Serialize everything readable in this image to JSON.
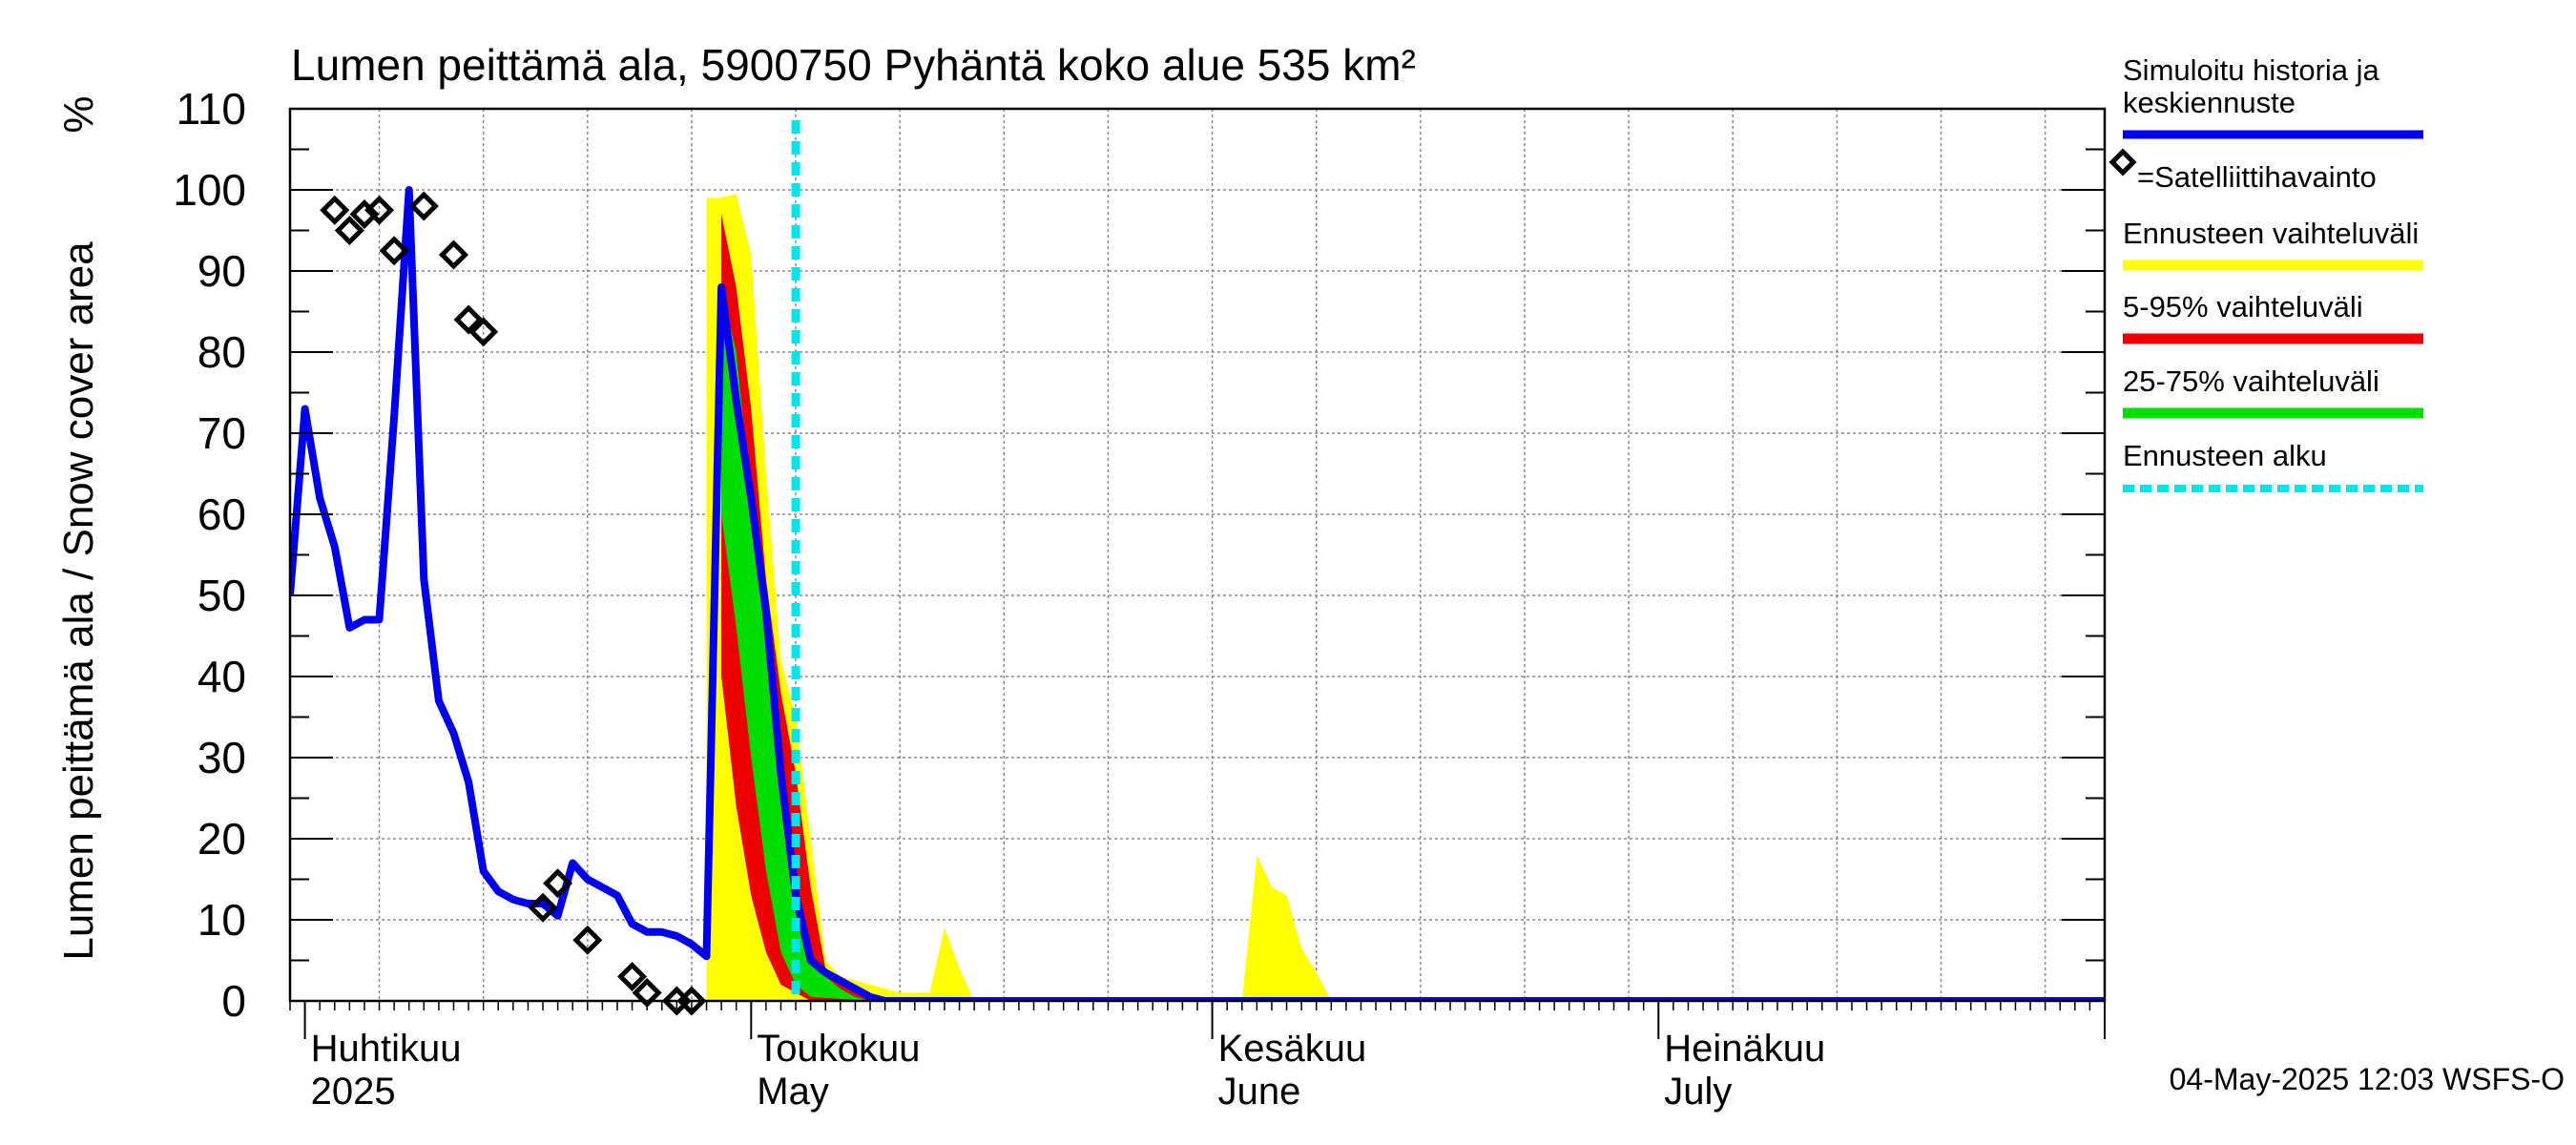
{
  "chart_data": {
    "type": "area",
    "title": "Lumen peittämä ala, 5900750 Pyhäntä koko alue 535 km²",
    "ylabel": "Lumen peittämä ala / Snow cover area",
    "yunit": "%",
    "ylim": [
      0,
      110
    ],
    "yticks": [
      0,
      10,
      20,
      30,
      40,
      50,
      60,
      70,
      80,
      90,
      100,
      110
    ],
    "xlim": [
      "2025-03-31",
      "2025-07-31"
    ],
    "grid": true,
    "legend_position": "right",
    "month_labels": [
      {
        "date": "2025-04-01",
        "fi": "Huhtikuu",
        "en": "2025"
      },
      {
        "date": "2025-05-01",
        "fi": "Toukokuu",
        "en": "May"
      },
      {
        "date": "2025-06-01",
        "fi": "Kesäkuu",
        "en": "June"
      },
      {
        "date": "2025-07-01",
        "fi": "Heinäkuu",
        "en": "July"
      }
    ],
    "forecast_start": "2025-05-04",
    "timestamp": "04-May-2025 12:03 WSFS-O",
    "legend": [
      {
        "label": "Simuloitu historia ja keskiennuste",
        "color": "#0000ee",
        "style": "line"
      },
      {
        "label": "=Satelliittihavainto",
        "color": "#000000",
        "style": "diamond"
      },
      {
        "label": "Ennusteen vaihteluväli",
        "color": "#ffff00",
        "style": "band"
      },
      {
        "label": "5-95% vaihteluväli",
        "color": "#ee0000",
        "style": "band"
      },
      {
        "label": "25-75% vaihteluväli",
        "color": "#00dd00",
        "style": "band"
      },
      {
        "label": "Ennusteen alku",
        "color": "#00e5ee",
        "style": "dashed"
      }
    ],
    "colors": {
      "simulated": "#0000ee",
      "band_full": "#ffff00",
      "band_5_95": "#ee0000",
      "band_25_75": "#00dd00",
      "forecast_start": "#00e5ee",
      "grid": "#888888"
    },
    "series": [
      {
        "name": "Simuloitu historia ja keskiennuste",
        "type": "line",
        "points": [
          [
            "2025-03-31",
            50
          ],
          [
            "2025-04-01",
            73
          ],
          [
            "2025-04-02",
            62
          ],
          [
            "2025-04-03",
            56
          ],
          [
            "2025-04-04",
            46
          ],
          [
            "2025-04-05",
            47
          ],
          [
            "2025-04-06",
            47
          ],
          [
            "2025-04-07",
            72
          ],
          [
            "2025-04-08",
            100
          ],
          [
            "2025-04-09",
            52
          ],
          [
            "2025-04-10",
            37
          ],
          [
            "2025-04-11",
            33
          ],
          [
            "2025-04-12",
            27
          ],
          [
            "2025-04-13",
            16
          ],
          [
            "2025-04-14",
            13.5
          ],
          [
            "2025-04-15",
            12.5
          ],
          [
            "2025-04-16",
            12
          ],
          [
            "2025-04-17",
            12
          ],
          [
            "2025-04-18",
            10.5
          ],
          [
            "2025-04-19",
            17
          ],
          [
            "2025-04-20",
            15
          ],
          [
            "2025-04-21",
            14
          ],
          [
            "2025-04-22",
            13
          ],
          [
            "2025-04-23",
            9.5
          ],
          [
            "2025-04-24",
            8.5
          ],
          [
            "2025-04-25",
            8.5
          ],
          [
            "2025-04-26",
            8
          ],
          [
            "2025-04-27",
            7
          ],
          [
            "2025-04-28",
            5.5
          ],
          [
            "2025-04-29",
            88
          ],
          [
            "2025-04-30",
            74
          ],
          [
            "2025-05-01",
            62
          ],
          [
            "2025-05-02",
            48
          ],
          [
            "2025-05-03",
            28
          ],
          [
            "2025-05-04",
            13
          ],
          [
            "2025-05-05",
            5
          ],
          [
            "2025-05-06",
            3.5
          ],
          [
            "2025-05-07",
            2.5
          ],
          [
            "2025-05-08",
            1.5
          ],
          [
            "2025-05-09",
            0.5
          ],
          [
            "2025-05-10",
            0
          ],
          [
            "2025-07-31",
            0
          ]
        ]
      },
      {
        "name": "Satelliittihavainto",
        "type": "scatter",
        "points": [
          [
            "2025-04-03",
            97.5
          ],
          [
            "2025-04-04",
            95
          ],
          [
            "2025-04-05",
            97
          ],
          [
            "2025-04-06",
            97.5
          ],
          [
            "2025-04-07",
            92.5
          ],
          [
            "2025-04-09",
            98
          ],
          [
            "2025-04-11",
            92
          ],
          [
            "2025-04-12",
            84
          ],
          [
            "2025-04-13",
            82.5
          ],
          [
            "2025-04-17",
            11.5
          ],
          [
            "2025-04-18",
            14.5
          ],
          [
            "2025-04-20",
            7.5
          ],
          [
            "2025-04-23",
            3
          ],
          [
            "2025-04-24",
            1
          ],
          [
            "2025-04-26",
            0
          ],
          [
            "2025-04-27",
            0
          ]
        ]
      },
      {
        "name": "Ennusteen vaihteluväli",
        "type": "band",
        "upper": [
          [
            "2025-04-28",
            99
          ],
          [
            "2025-04-29",
            99
          ],
          [
            "2025-04-30",
            99.5
          ],
          [
            "2025-05-01",
            92
          ],
          [
            "2025-05-02",
            65
          ],
          [
            "2025-05-03",
            42
          ],
          [
            "2025-05-04",
            35
          ],
          [
            "2025-05-05",
            20
          ],
          [
            "2025-05-06",
            5
          ],
          [
            "2025-05-07",
            3
          ],
          [
            "2025-05-08",
            2.5
          ],
          [
            "2025-05-09",
            2
          ],
          [
            "2025-05-10",
            1.5
          ],
          [
            "2025-05-11",
            1
          ],
          [
            "2025-05-12",
            1
          ],
          [
            "2025-05-13",
            1
          ],
          [
            "2025-05-14",
            9
          ],
          [
            "2025-05-15",
            4
          ],
          [
            "2025-05-16",
            0
          ],
          [
            "2025-06-03",
            0
          ],
          [
            "2025-06-04",
            18
          ],
          [
            "2025-06-05",
            14
          ],
          [
            "2025-06-06",
            13
          ],
          [
            "2025-06-07",
            6.5
          ],
          [
            "2025-06-08",
            3.5
          ],
          [
            "2025-06-09",
            0
          ],
          [
            "2025-07-31",
            0
          ]
        ],
        "lower": [
          [
            "2025-04-28",
            0
          ],
          [
            "2025-04-29",
            0
          ],
          [
            "2025-04-30",
            0
          ],
          [
            "2025-07-31",
            0
          ]
        ]
      },
      {
        "name": "5-95% vaihteluväli",
        "type": "band",
        "upper": [
          [
            "2025-04-29",
            97
          ],
          [
            "2025-04-30",
            88
          ],
          [
            "2025-05-01",
            73
          ],
          [
            "2025-05-02",
            52
          ],
          [
            "2025-05-03",
            38
          ],
          [
            "2025-05-04",
            28
          ],
          [
            "2025-05-05",
            14
          ],
          [
            "2025-05-06",
            4
          ],
          [
            "2025-05-07",
            2.5
          ],
          [
            "2025-05-08",
            2
          ],
          [
            "2025-05-09",
            1
          ],
          [
            "2025-05-10",
            0
          ]
        ],
        "lower": [
          [
            "2025-04-29",
            40
          ],
          [
            "2025-04-30",
            24
          ],
          [
            "2025-05-01",
            13
          ],
          [
            "2025-05-02",
            6
          ],
          [
            "2025-05-03",
            2
          ],
          [
            "2025-05-04",
            1
          ],
          [
            "2025-05-05",
            0
          ],
          [
            "2025-05-10",
            0
          ]
        ]
      },
      {
        "name": "25-75% vaihteluväli",
        "type": "band",
        "upper": [
          [
            "2025-04-29",
            88
          ],
          [
            "2025-04-30",
            80
          ],
          [
            "2025-05-01",
            62
          ],
          [
            "2025-05-02",
            45
          ],
          [
            "2025-05-03",
            28
          ],
          [
            "2025-05-04",
            12
          ],
          [
            "2025-05-05",
            5
          ],
          [
            "2025-05-06",
            3
          ],
          [
            "2025-05-07",
            1.5
          ],
          [
            "2025-05-08",
            0.5
          ],
          [
            "2025-05-09",
            0
          ]
        ],
        "lower": [
          [
            "2025-04-29",
            60
          ],
          [
            "2025-04-30",
            46
          ],
          [
            "2025-05-01",
            30
          ],
          [
            "2025-05-02",
            16
          ],
          [
            "2025-05-03",
            6
          ],
          [
            "2025-05-04",
            2
          ],
          [
            "2025-05-05",
            0.5
          ],
          [
            "2025-05-09",
            0
          ]
        ]
      }
    ]
  }
}
